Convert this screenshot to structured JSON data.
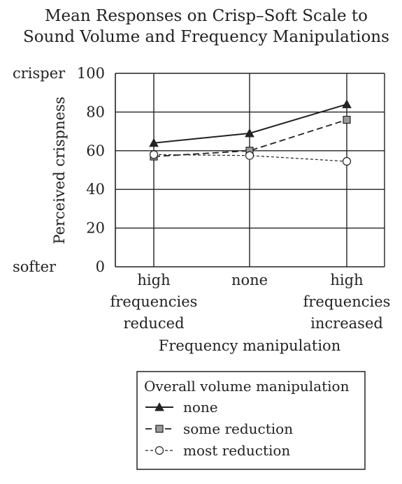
{
  "chart_data": {
    "type": "line",
    "title": [
      "Mean Responses on Crisp–Soft Scale to",
      "Sound Volume and Frequency Manipulations"
    ],
    "xlabel": "Frequency manipulation",
    "ylabel": "Perceived crispness",
    "categories": [
      [
        "high",
        "frequencies",
        "reduced"
      ],
      [
        "none"
      ],
      [
        "high",
        "frequencies",
        "increased"
      ]
    ],
    "yticks": [
      0,
      20,
      40,
      60,
      80,
      100
    ],
    "ylim": [
      0,
      100
    ],
    "y_anchor_labels": {
      "top": "crisper",
      "bottom": "softer"
    },
    "grid": true,
    "legend": {
      "title": "Overall volume manipulation",
      "placement": "bottom"
    },
    "series": [
      {
        "name": "none",
        "values": [
          64,
          69,
          84
        ],
        "marker": "triangle",
        "line": "solid",
        "color": "#222222"
      },
      {
        "name": "some reduction",
        "values": [
          57,
          60,
          76
        ],
        "marker": "square",
        "line": "dashed",
        "color": "#222222",
        "marker_fill": "#9a9a9a"
      },
      {
        "name": "most reduction",
        "values": [
          58,
          57.5,
          54.5
        ],
        "marker": "circle",
        "line": "dotted",
        "color": "#222222",
        "marker_fill": "#ffffff"
      }
    ]
  }
}
